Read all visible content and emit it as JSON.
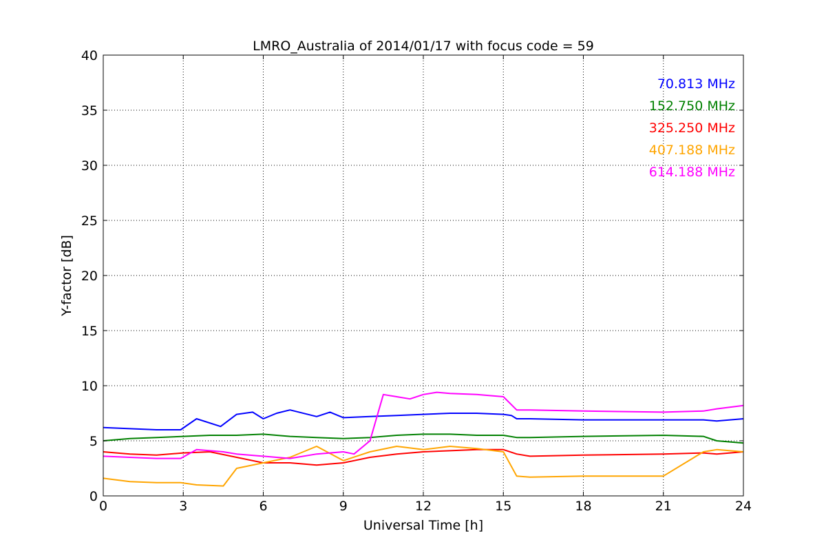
{
  "chart_data": {
    "type": "line",
    "title": "LMRO_Australia of 2014/01/17 with focus code = 59",
    "xlabel": "Universal Time [h]",
    "ylabel": "Y-factor [dB]",
    "xlim": [
      0,
      24
    ],
    "ylim": [
      0,
      40
    ],
    "x_ticks": [
      0,
      3,
      6,
      9,
      12,
      15,
      18,
      21,
      24
    ],
    "y_ticks": [
      0,
      5,
      10,
      15,
      20,
      25,
      30,
      35,
      40
    ],
    "x_tick_labels": [
      "0",
      "3",
      "6",
      "9",
      "12",
      "15",
      "18",
      "21",
      "24"
    ],
    "y_tick_labels": [
      "0",
      "5",
      "10",
      "15",
      "20",
      "25",
      "30",
      "35",
      "40"
    ],
    "grid": true,
    "legend_position": "top-right",
    "series": [
      {
        "name": "70.813 MHz",
        "color": "#0000ff",
        "x": [
          0,
          1,
          2,
          2.9,
          3.5,
          4.4,
          5,
          5.6,
          6,
          6.5,
          7,
          8,
          8.5,
          9,
          10,
          11,
          12,
          13,
          14,
          15,
          15.3,
          15.5,
          16,
          18,
          21,
          22.5,
          23,
          24
        ],
        "y": [
          6.2,
          6.1,
          6.0,
          6.0,
          7.0,
          6.3,
          7.4,
          7.6,
          7.0,
          7.5,
          7.8,
          7.2,
          7.6,
          7.1,
          7.2,
          7.3,
          7.4,
          7.5,
          7.5,
          7.4,
          7.3,
          7.0,
          7.0,
          6.9,
          6.9,
          6.9,
          6.8,
          7.0
        ]
      },
      {
        "name": "152.750 MHz",
        "color": "#008000",
        "x": [
          0,
          1,
          2,
          3,
          4,
          5,
          6,
          7,
          8,
          9,
          10,
          11,
          12,
          13,
          14,
          15,
          15.5,
          16,
          18,
          21,
          22.5,
          23,
          24
        ],
        "y": [
          5.0,
          5.2,
          5.3,
          5.4,
          5.5,
          5.5,
          5.6,
          5.4,
          5.3,
          5.2,
          5.3,
          5.5,
          5.6,
          5.6,
          5.5,
          5.5,
          5.3,
          5.3,
          5.4,
          5.5,
          5.4,
          5.0,
          4.8
        ]
      },
      {
        "name": "325.250 MHz",
        "color": "#ff0000",
        "x": [
          0,
          1,
          2,
          3,
          4,
          5,
          6,
          7,
          8,
          9,
          10,
          11,
          12,
          13,
          14,
          15,
          15.5,
          16,
          18,
          21,
          22.5,
          23,
          24
        ],
        "y": [
          4.0,
          3.8,
          3.7,
          3.9,
          4.0,
          3.5,
          3.0,
          3.0,
          2.8,
          3.0,
          3.5,
          3.8,
          4.0,
          4.1,
          4.2,
          4.2,
          3.8,
          3.6,
          3.7,
          3.8,
          3.9,
          3.8,
          4.0
        ]
      },
      {
        "name": "407.188 MHz",
        "color": "#ffa500",
        "x": [
          0,
          1,
          2,
          2.9,
          3.5,
          4.5,
          5,
          6,
          7,
          8,
          9,
          10,
          11,
          12,
          13,
          14,
          15,
          15.5,
          16,
          18,
          21,
          22.5,
          23,
          24
        ],
        "y": [
          1.6,
          1.3,
          1.2,
          1.2,
          1.0,
          0.9,
          2.5,
          3.0,
          3.5,
          4.5,
          3.2,
          4.0,
          4.5,
          4.2,
          4.5,
          4.3,
          4.0,
          1.8,
          1.7,
          1.8,
          1.8,
          4.0,
          4.2,
          4.0
        ]
      },
      {
        "name": "614.188 MHz",
        "color": "#ff00ff",
        "x": [
          0,
          1,
          2,
          2.9,
          3.5,
          4.5,
          5,
          6,
          7,
          8,
          9,
          9.4,
          10,
          10.5,
          11,
          11.5,
          12,
          12.5,
          13,
          14,
          15,
          15.5,
          16,
          18,
          21,
          22.5,
          23,
          24
        ],
        "y": [
          3.6,
          3.5,
          3.4,
          3.4,
          4.2,
          4.0,
          3.8,
          3.6,
          3.4,
          3.8,
          4.0,
          3.8,
          5.0,
          9.2,
          9.0,
          8.8,
          9.2,
          9.4,
          9.3,
          9.2,
          9.0,
          7.8,
          7.8,
          7.7,
          7.6,
          7.7,
          7.9,
          8.2
        ]
      }
    ]
  }
}
